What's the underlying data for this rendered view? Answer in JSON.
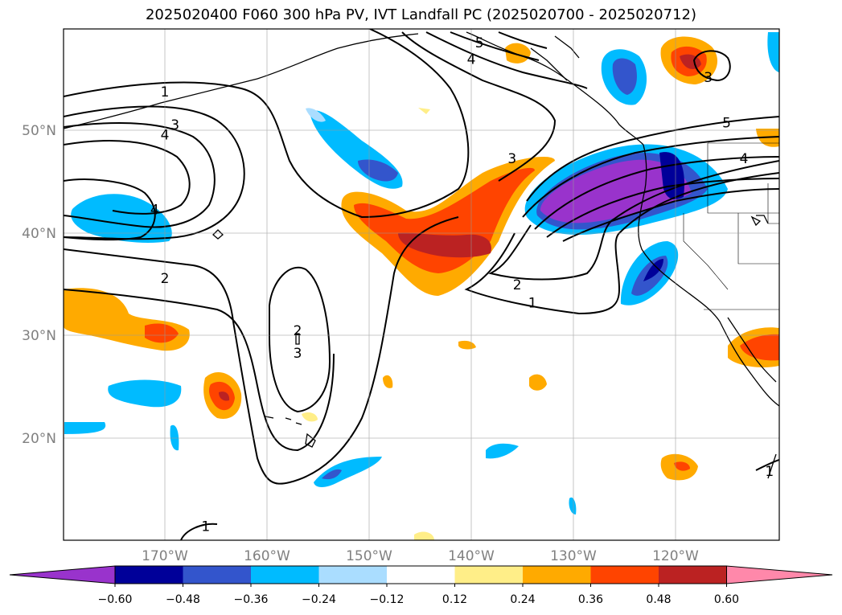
{
  "title": "2025020400 F060 300 hPa PV, IVT Landfall PC (2025020700 - 2025020712)",
  "lon_ticks": [
    "170°W",
    "160°W",
    "150°W",
    "140°W",
    "130°W",
    "120°W"
  ],
  "lat_ticks": [
    "50°N",
    "40°N",
    "30°N",
    "20°N"
  ],
  "colorbar": {
    "levels": [
      "−0.60",
      "−0.48",
      "−0.36",
      "−0.24",
      "−0.12",
      "0.12",
      "0.24",
      "0.36",
      "0.48",
      "0.60"
    ],
    "colors": [
      "#9933cc",
      "#000099",
      "#3355cc",
      "#00bbff",
      "#aaddff",
      "#ffffff",
      "#ffee88",
      "#ffaa00",
      "#ff4400",
      "#bb2222",
      "#ff88aa"
    ]
  },
  "contour_labels": [
    {
      "text": "1",
      "lon": -170.0,
      "lat": 53.8
    },
    {
      "text": "3",
      "lon": -169.0,
      "lat": 50.6
    },
    {
      "text": "4",
      "lon": -170.0,
      "lat": 49.6
    },
    {
      "text": "4",
      "lon": -171.0,
      "lat": 42.3
    },
    {
      "text": "2",
      "lon": -170.0,
      "lat": 35.6
    },
    {
      "text": "2",
      "lon": -157.0,
      "lat": 30.5
    },
    {
      "text": "3",
      "lon": -157.0,
      "lat": 28.3
    },
    {
      "text": "1",
      "lon": -166.0,
      "lat": 11.4
    },
    {
      "text": "5",
      "lon": -139.2,
      "lat": 58.6
    },
    {
      "text": "4",
      "lon": -140.0,
      "lat": 57.0
    },
    {
      "text": "3",
      "lon": -136.0,
      "lat": 47.3
    },
    {
      "text": "2",
      "lon": -135.5,
      "lat": 35.0
    },
    {
      "text": "1",
      "lon": -134.0,
      "lat": 33.2
    },
    {
      "text": "5",
      "lon": -115.0,
      "lat": 50.8
    },
    {
      "text": "4",
      "lon": -113.3,
      "lat": 47.3
    },
    {
      "text": "3",
      "lon": -116.8,
      "lat": 55.2
    },
    {
      "text": "1",
      "lon": -110.8,
      "lat": 16.8
    }
  ]
}
